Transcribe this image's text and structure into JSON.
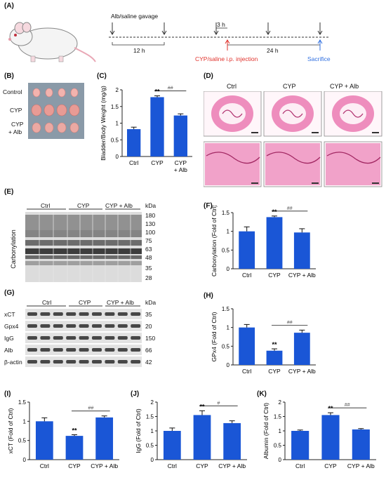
{
  "panels": {
    "A": {
      "label": "(A)",
      "gavage": "Alb/saline gavage",
      "h12": "12 h",
      "h3": "3 h",
      "h24": "24 h",
      "injection": "CYP/saline i.p. injection",
      "sacrifice": "Sacrifice",
      "injection_color": "#e0312b",
      "sacrifice_color": "#2f6fe0"
    },
    "B": {
      "label": "(B)",
      "rows": [
        "Control",
        "CYP",
        "CYP",
        "+ Alb"
      ]
    },
    "C": {
      "label": "(C)"
    },
    "D": {
      "label": "(D)",
      "cols": [
        "Ctrl",
        "CYP",
        "CYP + Alb"
      ],
      "stain_color": "#e86aa8"
    },
    "E": {
      "label": "(E)",
      "groups": [
        "Ctrl",
        "CYP",
        "CYP + Alb"
      ],
      "ylabel": "Carbonylation",
      "kda": "kDa",
      "markers": [
        "180",
        "130",
        "100",
        "75",
        "63",
        "48",
        "35",
        "28"
      ]
    },
    "F": {
      "label": "(F)"
    },
    "G": {
      "label": "(G)",
      "groups": [
        "Ctrl",
        "CYP",
        "CYP + Alb"
      ],
      "kda": "kDa",
      "rows": [
        {
          "name": "xCT",
          "kda": "35"
        },
        {
          "name": "Gpx4",
          "kda": "20"
        },
        {
          "name": "IgG",
          "kda": "150"
        },
        {
          "name": "Alb",
          "kda": "66"
        },
        {
          "name": "β-actin",
          "kda": "42"
        }
      ]
    },
    "H": {
      "label": "(H)"
    },
    "I": {
      "label": "(I)"
    },
    "J": {
      "label": "(J)"
    },
    "K": {
      "label": "(K)"
    }
  },
  "bar_color": "#1a56d6",
  "chart_data": [
    {
      "id": "C",
      "type": "bar",
      "categories": [
        "Ctrl",
        "CYP",
        "CYP\n+ Alb"
      ],
      "values": [
        0.82,
        1.78,
        1.23
      ],
      "errors": [
        0.06,
        0.04,
        0.05
      ],
      "ylabel": "Bladder/Body Weight (mg/g)",
      "ylim": [
        0,
        2
      ],
      "yticks": [
        0,
        0.5,
        1,
        1.5,
        2
      ],
      "sig": [
        {
          "bar": 1,
          "text": "**"
        }
      ],
      "bracket": {
        "from": 1,
        "to": 2,
        "text": "##"
      }
    },
    {
      "id": "F",
      "type": "bar",
      "categories": [
        "Ctrl",
        "CYP",
        "CYP + Alb"
      ],
      "values": [
        1.0,
        1.38,
        0.97
      ],
      "errors": [
        0.12,
        0.03,
        0.1
      ],
      "ylabel": "Carbonylation (Fold of Ctrl)",
      "ylim": [
        0,
        1.5
      ],
      "yticks": [
        0,
        0.5,
        1,
        1.5
      ],
      "sig": [
        {
          "bar": 1,
          "text": "**"
        }
      ],
      "bracket": {
        "from": 1,
        "to": 2,
        "text": "##"
      }
    },
    {
      "id": "H",
      "type": "bar",
      "categories": [
        "Ctrl",
        "CYP",
        "CYP + Alb"
      ],
      "values": [
        1.0,
        0.38,
        0.86
      ],
      "errors": [
        0.08,
        0.05,
        0.07
      ],
      "ylabel": "GPx4 (Fold of Ctrl)",
      "ylim": [
        0,
        1.5
      ],
      "yticks": [
        0,
        0.5,
        1,
        1.5
      ],
      "sig": [
        {
          "bar": 1,
          "text": "**"
        }
      ],
      "bracket": {
        "from": 1,
        "to": 2,
        "text": "##"
      }
    },
    {
      "id": "I",
      "type": "bar",
      "categories": [
        "Ctrl",
        "CYP",
        "CYP + Alb"
      ],
      "values": [
        1.0,
        0.62,
        1.1
      ],
      "errors": [
        0.09,
        0.03,
        0.04
      ],
      "ylabel": "xCT (Fold of Ctrl)",
      "ylim": [
        0,
        1.5
      ],
      "yticks": [
        0,
        0.5,
        1,
        1.5
      ],
      "sig": [
        {
          "bar": 1,
          "text": "**"
        }
      ],
      "bracket": {
        "from": 1,
        "to": 2,
        "text": "##"
      }
    },
    {
      "id": "J",
      "type": "bar",
      "categories": [
        "Ctrl",
        "CYP",
        "CYP + Alb"
      ],
      "values": [
        1.0,
        1.55,
        1.27
      ],
      "errors": [
        0.1,
        0.15,
        0.08
      ],
      "ylabel": "IgG (Fold of Ctrl)",
      "ylim": [
        0,
        2
      ],
      "yticks": [
        0,
        0.5,
        1,
        1.5,
        2
      ],
      "sig": [
        {
          "bar": 1,
          "text": "**"
        }
      ],
      "bracket": {
        "from": 1,
        "to": 2,
        "text": "#"
      }
    },
    {
      "id": "K",
      "type": "bar",
      "categories": [
        "Ctrl",
        "CYP",
        "CYP + Alb"
      ],
      "values": [
        1.0,
        1.55,
        1.05
      ],
      "errors": [
        0.03,
        0.08,
        0.03
      ],
      "ylabel": "Albumin (Fold of Ctrl)",
      "ylim": [
        0,
        2
      ],
      "yticks": [
        0,
        0.5,
        1,
        1.5,
        2
      ],
      "sig": [
        {
          "bar": 1,
          "text": "**"
        }
      ],
      "bracket": {
        "from": 1,
        "to": 2,
        "text": "##"
      }
    }
  ]
}
